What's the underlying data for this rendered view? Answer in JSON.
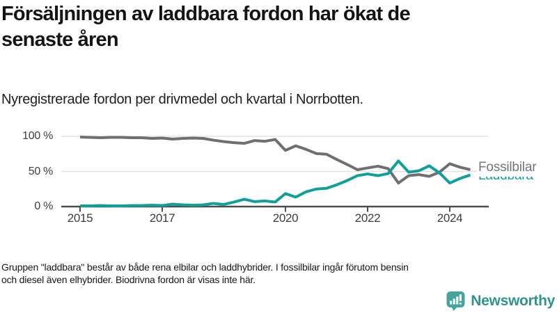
{
  "header": {
    "title_lines": [
      "Försäljningen av laddbara fordon har ökat de",
      "senaste åren"
    ],
    "subtitle": "Nyregistrerade fordon per drivmedel och kvartal i Norrbotten."
  },
  "chart_data": {
    "type": "line",
    "title": "Försäljningen av laddbara fordon har ökat de senaste åren",
    "subtitle": "Nyregistrerade fordon per drivmedel och kvartal i Norrbotten.",
    "xlabel": "",
    "ylabel": "",
    "ylim": [
      0,
      100
    ],
    "grid": "horizontal",
    "legend_position": "end-of-line-right",
    "categories": [
      "2015 Q1",
      "2015 Q2",
      "2015 Q3",
      "2015 Q4",
      "2016 Q1",
      "2016 Q2",
      "2016 Q3",
      "2016 Q4",
      "2017 Q1",
      "2017 Q2",
      "2017 Q3",
      "2017 Q4",
      "2018 Q1",
      "2018 Q2",
      "2018 Q3",
      "2018 Q4",
      "2019 Q1",
      "2019 Q2",
      "2019 Q3",
      "2019 Q4",
      "2020 Q1",
      "2020 Q2",
      "2020 Q3",
      "2020 Q4",
      "2021 Q1",
      "2021 Q2",
      "2021 Q3",
      "2021 Q4",
      "2022 Q1",
      "2022 Q2",
      "2022 Q3",
      "2022 Q4",
      "2023 Q1",
      "2023 Q2",
      "2023 Q3",
      "2023 Q4",
      "2024 Q1",
      "2024 Q2",
      "2024 Q3"
    ],
    "series": [
      {
        "name": "Fossilbilar",
        "color": "#6f6f73",
        "values": [
          99,
          98.5,
          98,
          98.5,
          98.5,
          98,
          98,
          97,
          97.5,
          96,
          97,
          97.5,
          97,
          94.5,
          92.5,
          91,
          90,
          94,
          93,
          95.5,
          80,
          86.5,
          81.5,
          75.5,
          74.5,
          67,
          60,
          52.5,
          55,
          57.5,
          54,
          33.5,
          44,
          45.5,
          43,
          49,
          61,
          56,
          52.5
        ]
      },
      {
        "name": "Laddbara",
        "color": "#0fa099",
        "values": [
          1,
          1,
          1.5,
          1,
          1,
          1.5,
          1.5,
          2,
          1.5,
          3.5,
          2.5,
          2,
          2.5,
          4.5,
          3,
          6.5,
          10.5,
          7,
          8,
          6.5,
          18.5,
          13.5,
          21,
          25,
          26,
          31,
          37,
          44,
          46.5,
          44,
          47,
          65,
          49,
          51,
          58,
          48,
          33.5,
          40,
          45
        ]
      }
    ],
    "y_tick_values": [
      100,
      50,
      0
    ],
    "y_tick_labels": [
      "100 %",
      "50 %",
      "0 %"
    ],
    "x_tick_years": [
      2015,
      2017,
      2020,
      2022,
      2024
    ],
    "x_tick_labels": [
      "2015",
      "2017",
      "2020",
      "2022",
      "2024"
    ]
  },
  "footer": {
    "note_lines": [
      "Gruppen \"laddbara\" består av både rena elbilar och laddhybrider. I fossilbilar ingår förutom bensin",
      "och diesel även elhybrider. Biodrivna fordon är visas inte här."
    ],
    "brand": "Newsworthy"
  }
}
